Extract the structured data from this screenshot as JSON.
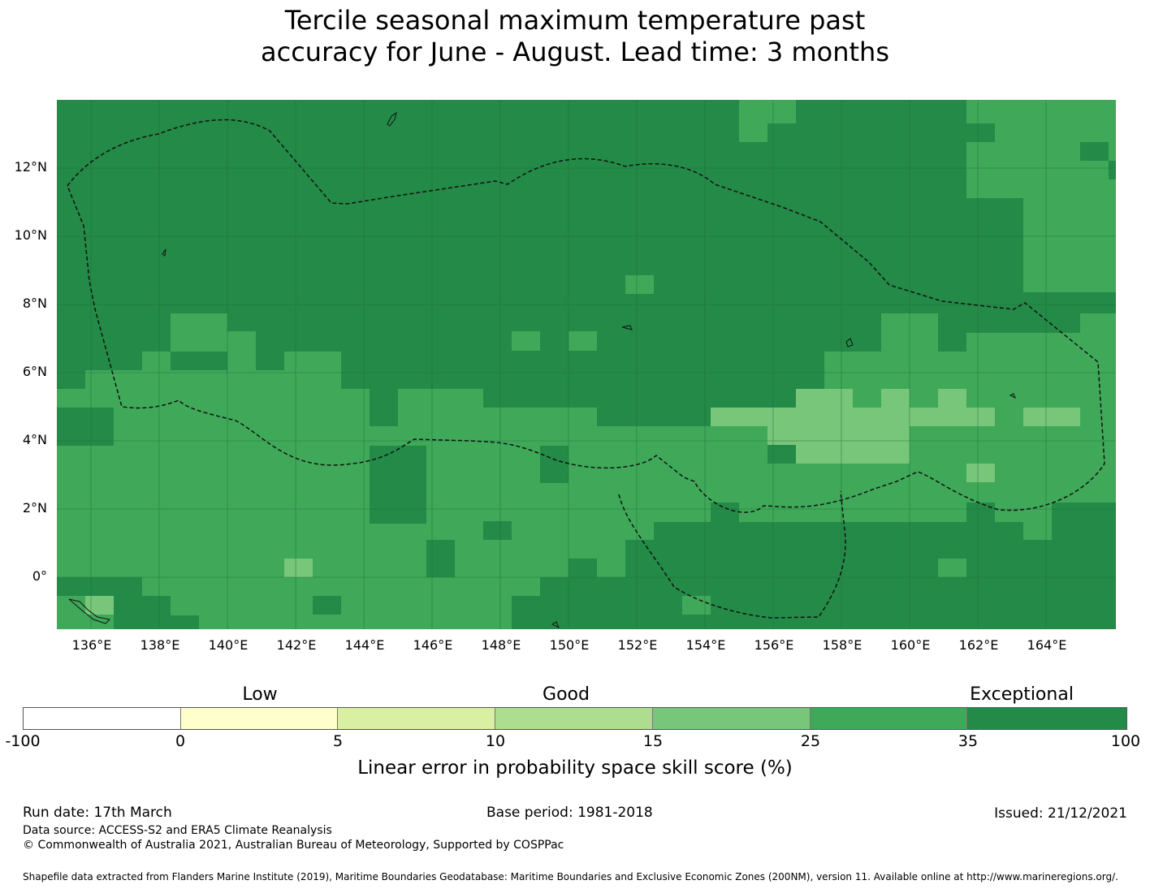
{
  "title_line1": "Tercile seasonal maximum temperature past",
  "title_line2": "accuracy for June - August. Lead time: 3 months",
  "map": {
    "lon_range": [
      135.0,
      166.0
    ],
    "lat_range": [
      -1.5,
      14.0
    ],
    "grid": true,
    "lat_ticks": [
      "12°N",
      "10°N",
      "8°N",
      "6°N",
      "4°N",
      "2°N",
      "0°"
    ],
    "lon_ticks": [
      "136°E",
      "138°E",
      "140°E",
      "142°E",
      "144°E",
      "146°E",
      "148°E",
      "150°E",
      "152°E",
      "154°E",
      "156°E",
      "158°E",
      "160°E",
      "162°E",
      "164°E"
    ],
    "boundary": "eez-dashed-outline"
  },
  "legend": {
    "categories": [
      "Low",
      "Good",
      "Exceptional"
    ],
    "colors": [
      "#ffffff",
      "#ffffcc",
      "#d9f0a3",
      "#addd8e",
      "#78c679",
      "#3fa959",
      "#248a47"
    ],
    "ticks": [
      "-100",
      "0",
      "5",
      "10",
      "15",
      "25",
      "35",
      "100"
    ],
    "label": "Linear error in probability space skill score (%)"
  },
  "footer": {
    "run_date": "Run date: 17th March",
    "base_period": "Base period: 1981-2018",
    "issued": "Issued: 21/12/2021",
    "data_source": "Data source: ACCESS-S2 and ERA5 Climate Reanalysis",
    "copyright": "© Commonwealth of Australia 2021, Australian Bureau of Meteorology, Supported by COSPPac",
    "shapefile": "Shapefile data extracted from Flanders Marine Institute (2019), Maritime Boundaries Geodatabase: Maritime Boundaries and Exclusive Economic Zones (200NM), version 11. Available online at http://www.marineregions.org/."
  }
}
